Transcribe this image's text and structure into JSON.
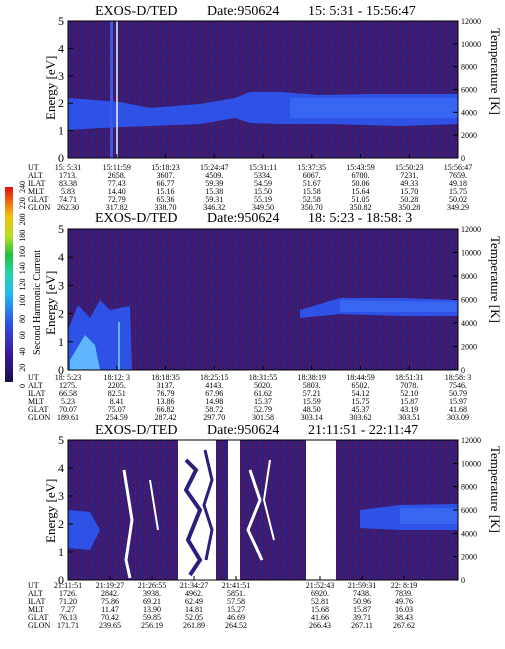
{
  "chart_data": [
    {
      "type": "heatmap",
      "title": "EXOS-D/TED",
      "date_label": "Date:950624",
      "time_range": "15: 5:31 - 15:56:47",
      "ylabel": "Energy [eV]",
      "y2label": "Temperature [K]",
      "yticks": [
        "0",
        "1",
        "2",
        "3",
        "4",
        "5"
      ],
      "ylim": [
        0,
        5
      ],
      "y2ticks": [
        "0",
        "2000",
        "4000",
        "6000",
        "8000",
        "10000",
        "12000"
      ],
      "y2lim": [
        0,
        12000
      ],
      "row_labels": [
        "UT",
        "ALT",
        "ILAT",
        "MLT",
        "GLAT",
        "GLON"
      ],
      "columns": [
        [
          "15: 5:31",
          "1713.",
          "83.38",
          "5.83",
          "74.71",
          "262.30"
        ],
        [
          "15:11:59",
          "2658.",
          "77.43",
          "14.40",
          "72.79",
          "317.82"
        ],
        [
          "15:18:23",
          "3607.",
          "66.77",
          "15.16",
          "65.36",
          "338.70"
        ],
        [
          "15:24:47",
          "4509.",
          "59.39",
          "15.38",
          "59.31",
          "346.32"
        ],
        [
          "15:31:11",
          "5334.",
          "54.59",
          "15.50",
          "55.19",
          "349.50"
        ],
        [
          "15:37:35",
          "6067.",
          "51.67",
          "15.58",
          "52.58",
          "350.70"
        ],
        [
          "15:43:59",
          "6700.",
          "50.06",
          "15.64",
          "51.05",
          "350.82"
        ],
        [
          "15:50:23",
          "7231.",
          "49.33",
          "15.70",
          "50.28",
          "350.28"
        ],
        [
          "15:56:47",
          "7659.",
          "49.18",
          "15.75",
          "50.02",
          "349.29"
        ]
      ],
      "band": {
        "ymin": 1.2,
        "ymax": 2.6,
        "description_free": true
      }
    },
    {
      "type": "heatmap",
      "title": "EXOS-D/TED",
      "date_label": "Date:950624",
      "time_range": "18: 5:23 - 18:58: 3",
      "ylabel": "Energy [eV]",
      "y2label": "Temperature [K]",
      "yticks": [
        "0",
        "1",
        "2",
        "3",
        "4",
        "5"
      ],
      "ylim": [
        0,
        5
      ],
      "y2ticks": [
        "0",
        "2000",
        "4000",
        "6000",
        "8000",
        "10000",
        "12000"
      ],
      "y2lim": [
        0,
        12000
      ],
      "colorbar": {
        "label": "Second Harmonic Current",
        "ticks": [
          "0",
          "20",
          "40",
          "60",
          "80",
          "100",
          "120",
          "140",
          "160",
          "180",
          "200",
          "220",
          "240"
        ],
        "range": [
          0,
          240
        ]
      },
      "row_labels": [
        "UT",
        "ALT",
        "ILAT",
        "MLT",
        "GLAT",
        "GLON"
      ],
      "columns": [
        [
          "18: 5:23",
          "1275.",
          "66.58",
          "5.23",
          "70.07",
          "189.61"
        ],
        [
          "18:12: 3",
          "2205.",
          "82.51",
          "8.41",
          "75.07",
          "254.59"
        ],
        [
          "18:18:35",
          "3137.",
          "76.79",
          "13.86",
          "66.82",
          "287.42"
        ],
        [
          "18:25:15",
          "4143.",
          "67.96",
          "14.98",
          "58.72",
          "297.70"
        ],
        [
          "18:31:55",
          "5020.",
          "61.62",
          "15.37",
          "52.79",
          "301.58"
        ],
        [
          "18:38:19",
          "5803.",
          "57.21",
          "15.59",
          "48.50",
          "303.14"
        ],
        [
          "18:44:59",
          "6502.",
          "54.12",
          "15.75",
          "45.37",
          "303.62"
        ],
        [
          "18:51:31",
          "7078.",
          "52.10",
          "15.87",
          "43.19",
          "303.51"
        ],
        [
          "18:58: 3",
          "7546.",
          "50.79",
          "15.97",
          "41.68",
          "303.09"
        ]
      ],
      "band": {
        "ymin": 1.8,
        "ymax": 2.6
      }
    },
    {
      "type": "heatmap",
      "title": "EXOS-D/TED",
      "date_label": "Date:950624",
      "time_range": "21:11:51 - 22:11:47",
      "ylabel": "Energy [eV]",
      "y2label": "Temperature [K]",
      "yticks": [
        "0",
        "1",
        "2",
        "3",
        "4",
        "5"
      ],
      "ylim": [
        0,
        5
      ],
      "y2ticks": [
        "0",
        "2000",
        "4000",
        "6000",
        "8000",
        "10000",
        "12000"
      ],
      "y2lim": [
        0,
        12000
      ],
      "row_labels": [
        "UT",
        "ALT",
        "ILAT",
        "MLT",
        "GLAT",
        "GLON"
      ],
      "columns": [
        [
          "21:11:51",
          "1726.",
          "71.20",
          "7.27",
          "76.13",
          "171.71"
        ],
        [
          "21:19:27",
          "2842.",
          "75.86",
          "11.47",
          "70.42",
          "239.65"
        ],
        [
          "21:26:55",
          "3938.",
          "69.21",
          "13.90",
          "59.85",
          "256.19"
        ],
        [
          "21:34:27",
          "4962.",
          "62.49",
          "14.81",
          "52.05",
          "261.89"
        ],
        [
          "21:41:51",
          "5851.",
          "57.58",
          "15.27",
          "46.69",
          "264.52"
        ],
        [
          "21:52:43",
          "6920.",
          "52.81",
          "15.68",
          "41.66",
          "266.43"
        ],
        [
          "21:59:31",
          "7438.",
          "50.96",
          "15.87",
          "39.71",
          "267.11"
        ],
        [
          "22: 8:19",
          "7839.",
          "49.76",
          "16.03",
          "38.43",
          "267.62"
        ]
      ],
      "band": {
        "ymin": 1.6,
        "ymax": 2.6
      }
    }
  ]
}
